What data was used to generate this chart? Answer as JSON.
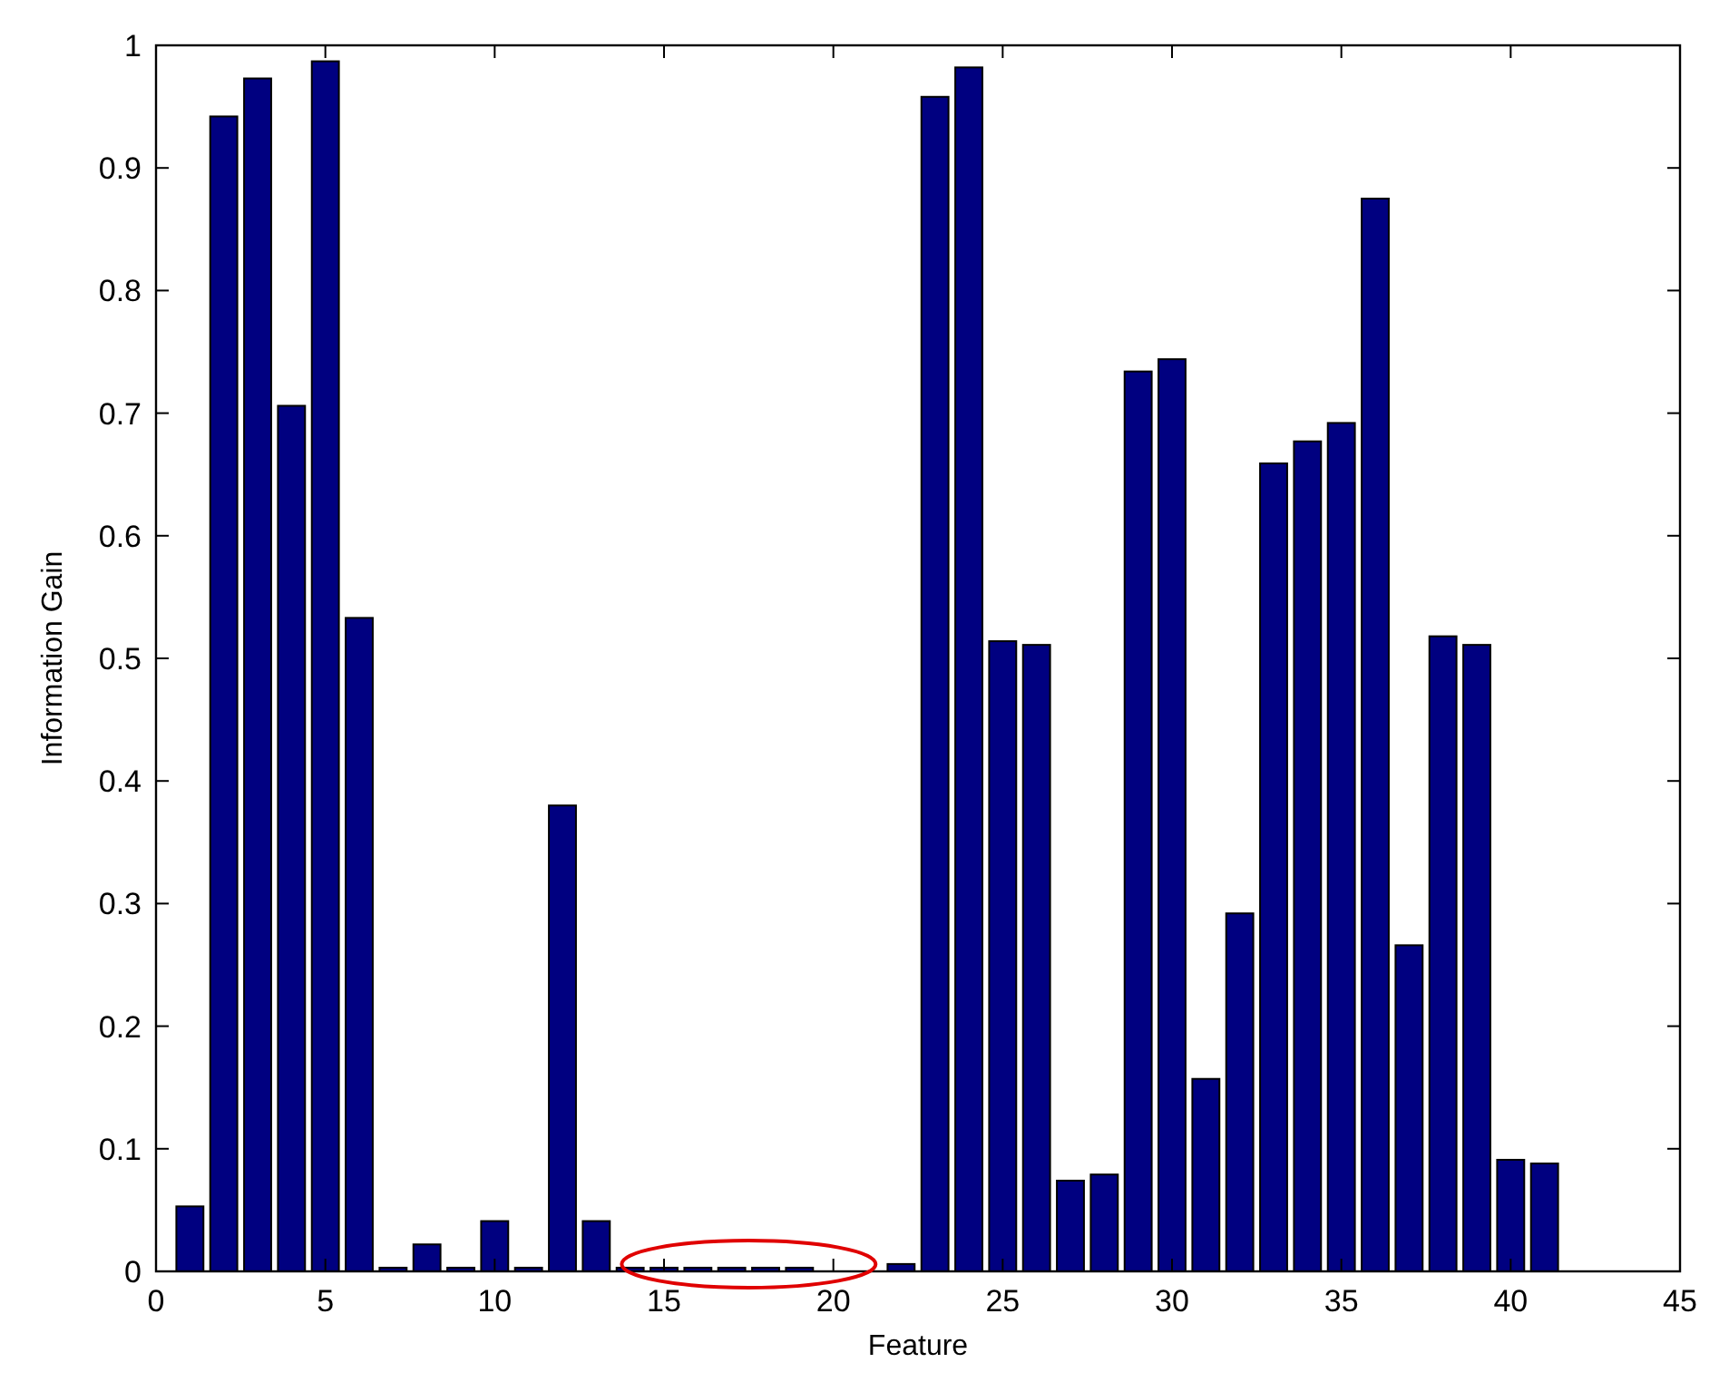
{
  "chart_data": {
    "type": "bar",
    "xlabel": "Feature",
    "ylabel": "Information Gain",
    "color": "#000080",
    "x": [
      1,
      2,
      3,
      4,
      5,
      6,
      7,
      8,
      9,
      10,
      11,
      12,
      13,
      14,
      15,
      16,
      17,
      18,
      19,
      20,
      21,
      22,
      23,
      24,
      25,
      26,
      27,
      28,
      29,
      30,
      31,
      32,
      33,
      34,
      35,
      36,
      37,
      38,
      39,
      40,
      41
    ],
    "values": [
      0.053,
      0.942,
      0.973,
      0.706,
      0.987,
      0.533,
      0.003,
      0.022,
      0.003,
      0.041,
      0.003,
      0.38,
      0.041,
      0.003,
      0.003,
      0.003,
      0.003,
      0.003,
      0.003,
      0,
      0,
      0.006,
      0.958,
      0.982,
      0.514,
      0.511,
      0.074,
      0.079,
      0.734,
      0.744,
      0.157,
      0.292,
      0.659,
      0.677,
      0.692,
      0.875,
      0.266,
      0.518,
      0.511,
      0.091,
      0.088
    ],
    "xlim": [
      0,
      45
    ],
    "xticks": [
      0,
      5,
      10,
      15,
      20,
      25,
      30,
      35,
      40,
      45
    ],
    "ylim": [
      0,
      1
    ],
    "yticks": [
      0,
      0.1,
      0.2,
      0.3,
      0.4,
      0.5,
      0.6,
      0.7,
      0.8,
      0.9,
      1
    ],
    "grid": false
  }
}
